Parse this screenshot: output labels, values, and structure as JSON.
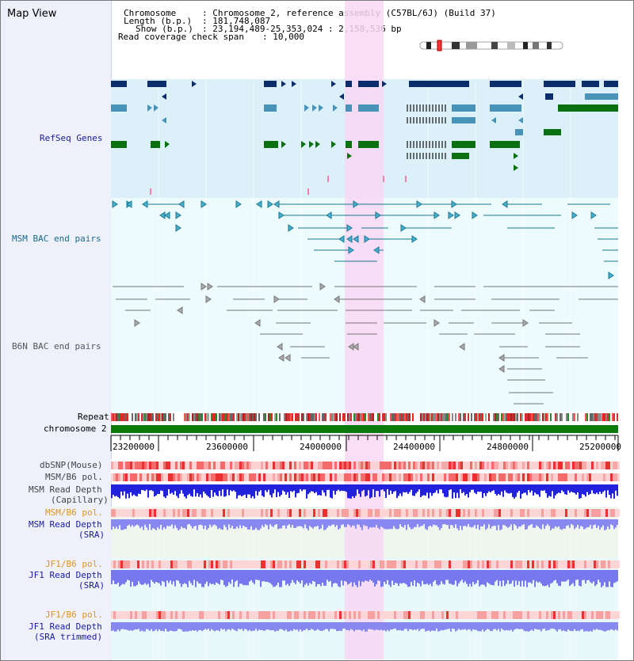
{
  "page": {
    "title": "Map View"
  },
  "header": {
    "chromosome_key": "Chromosome",
    "chromosome_val": ": Chromosome 2, reference assembly (C57BL/6J) (Build 37)",
    "length_key": "Length (b.p.)",
    "length_val": ": 181,748,087",
    "show_key": "Show (b.p.)",
    "show_val": ": 23,194,489-25,353,024 : 2,158,536 bp",
    "coverage_key": "Read coverage check span",
    "coverage_val": ": 10,000"
  },
  "tracks": {
    "refseq": "RefSeq Genes",
    "msm_bac": "MSM BAC end pairs",
    "b6n_bac": "B6N BAC end pairs",
    "repeat": "Repeat",
    "chromosome": "chromosome 2",
    "dbsnp": "dbSNP(Mouse)",
    "msm_b6_pol": "MSM/B6 pol.",
    "msm_read_depth_1": "MSM Read Depth",
    "msm_read_depth_1b": "(Capillary)",
    "msm_b6_pol_2": "MSM/B6 pol.",
    "msm_read_depth_2": "MSM Read Depth",
    "msm_read_depth_2b": "(SRA)",
    "jf1_b6_pol": "JF1/B6 pol.",
    "jf1_read_depth": "JF1 Read Depth",
    "jf1_read_depth_b": "(SRA)",
    "jf1_b6_pol_2": "JF1/B6 pol.",
    "jf1_read_depth_2": "JF1 Read Depth",
    "jf1_read_depth_2b": "(SRA trimmed)"
  },
  "axis": {
    "ticks": [
      "23200000",
      "23600000",
      "24000000",
      "24400000",
      "24800000",
      "25200000"
    ]
  },
  "colors": {
    "refseq_bg": "#dcf0fa",
    "bac_bg": "#eefbfd",
    "highlight": "#f8d8f4",
    "gene_dark": "#0b2d6b",
    "gene_mid": "#4a93b8",
    "gene_green": "#0a7010",
    "bac_teal": "#1a7890",
    "bac_gray": "#777777",
    "chromosome_bar": "#0a7a0a",
    "depth_blue": "#2222dd",
    "depth_light": "#8888f0",
    "snp_red": "#f06060",
    "label_teal": "#1a6a8a",
    "label_navy": "#1a1aa0",
    "label_orange": "#e0961e"
  }
}
